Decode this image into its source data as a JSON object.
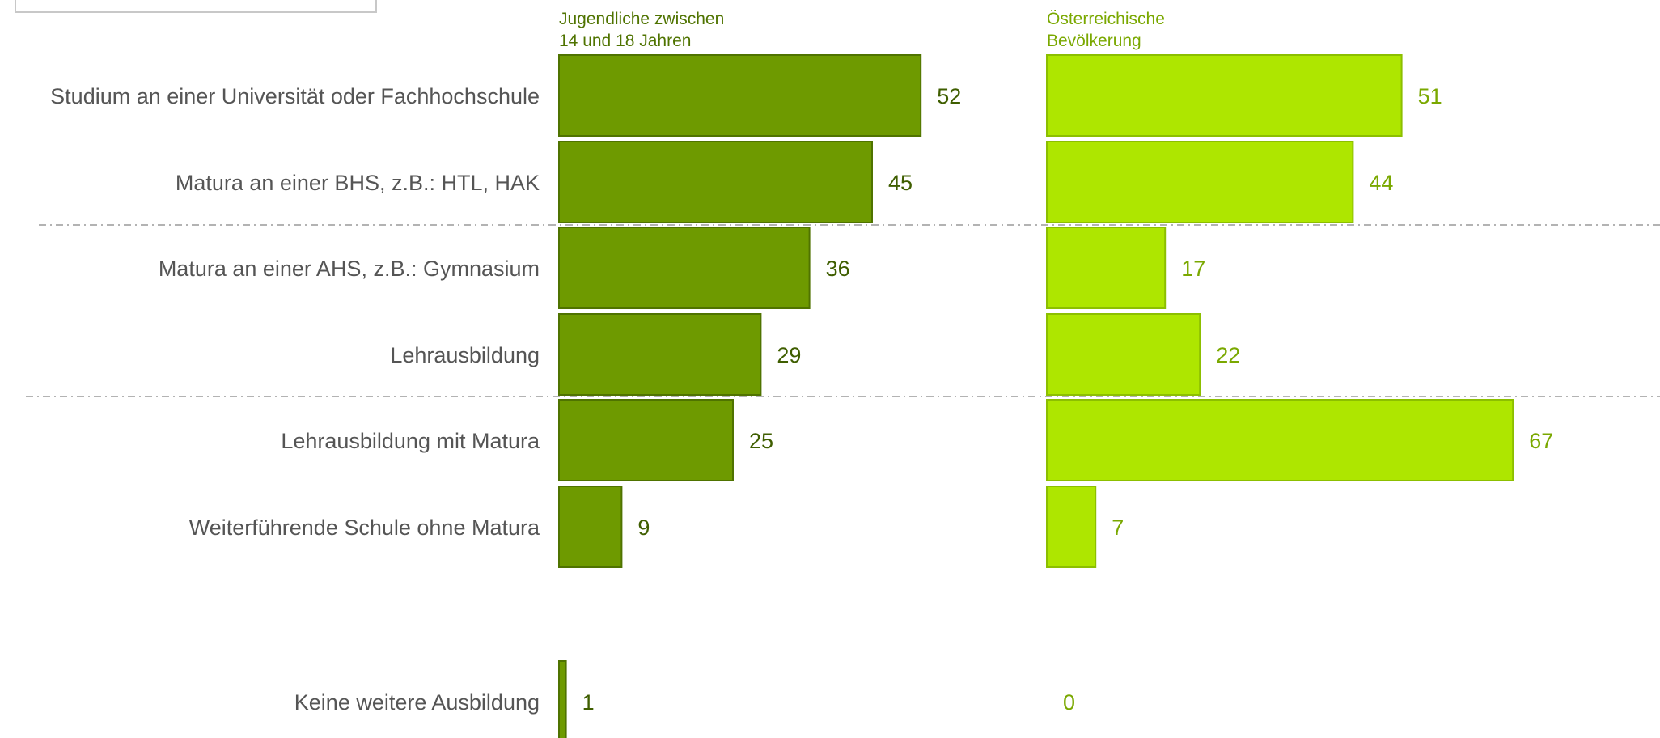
{
  "legend": {
    "text": ""
  },
  "chart_data": {
    "type": "bar",
    "orientation": "horizontal",
    "title": "",
    "categories": [
      "Studium an einer Universität oder Fachhochschule",
      "Matura an einer BHS, z.B.: HTL, HAK",
      "Matura an einer AHS, z.B.: Gymnasium",
      "Lehrausbildung",
      "Lehrausbildung mit Matura",
      "Weiterführende Schule ohne Matura",
      "Keine weitere Ausbildung"
    ],
    "series": [
      {
        "name": "Jugendliche zwischen 14 und 18 Jahren",
        "name_lines": [
          "Jugendliche zwischen",
          "14 und 18 Jahren"
        ],
        "values": [
          52,
          45,
          36,
          29,
          25,
          9,
          1
        ],
        "fill": "#6e9a00",
        "stroke": "#4f7300",
        "label_color": "#3f5e00"
      },
      {
        "name": "Österreichische Bevölkerung",
        "name_lines": [
          "Österreichische",
          "Bevölkerung"
        ],
        "values": [
          51,
          44,
          17,
          22,
          67,
          7,
          0
        ],
        "fill": "#aee600",
        "stroke": "#8cbf00",
        "label_color": "#7aa800"
      }
    ],
    "xlim": [
      0,
      70
    ],
    "grid": false,
    "separators_after_category_index": [
      1,
      3
    ]
  }
}
